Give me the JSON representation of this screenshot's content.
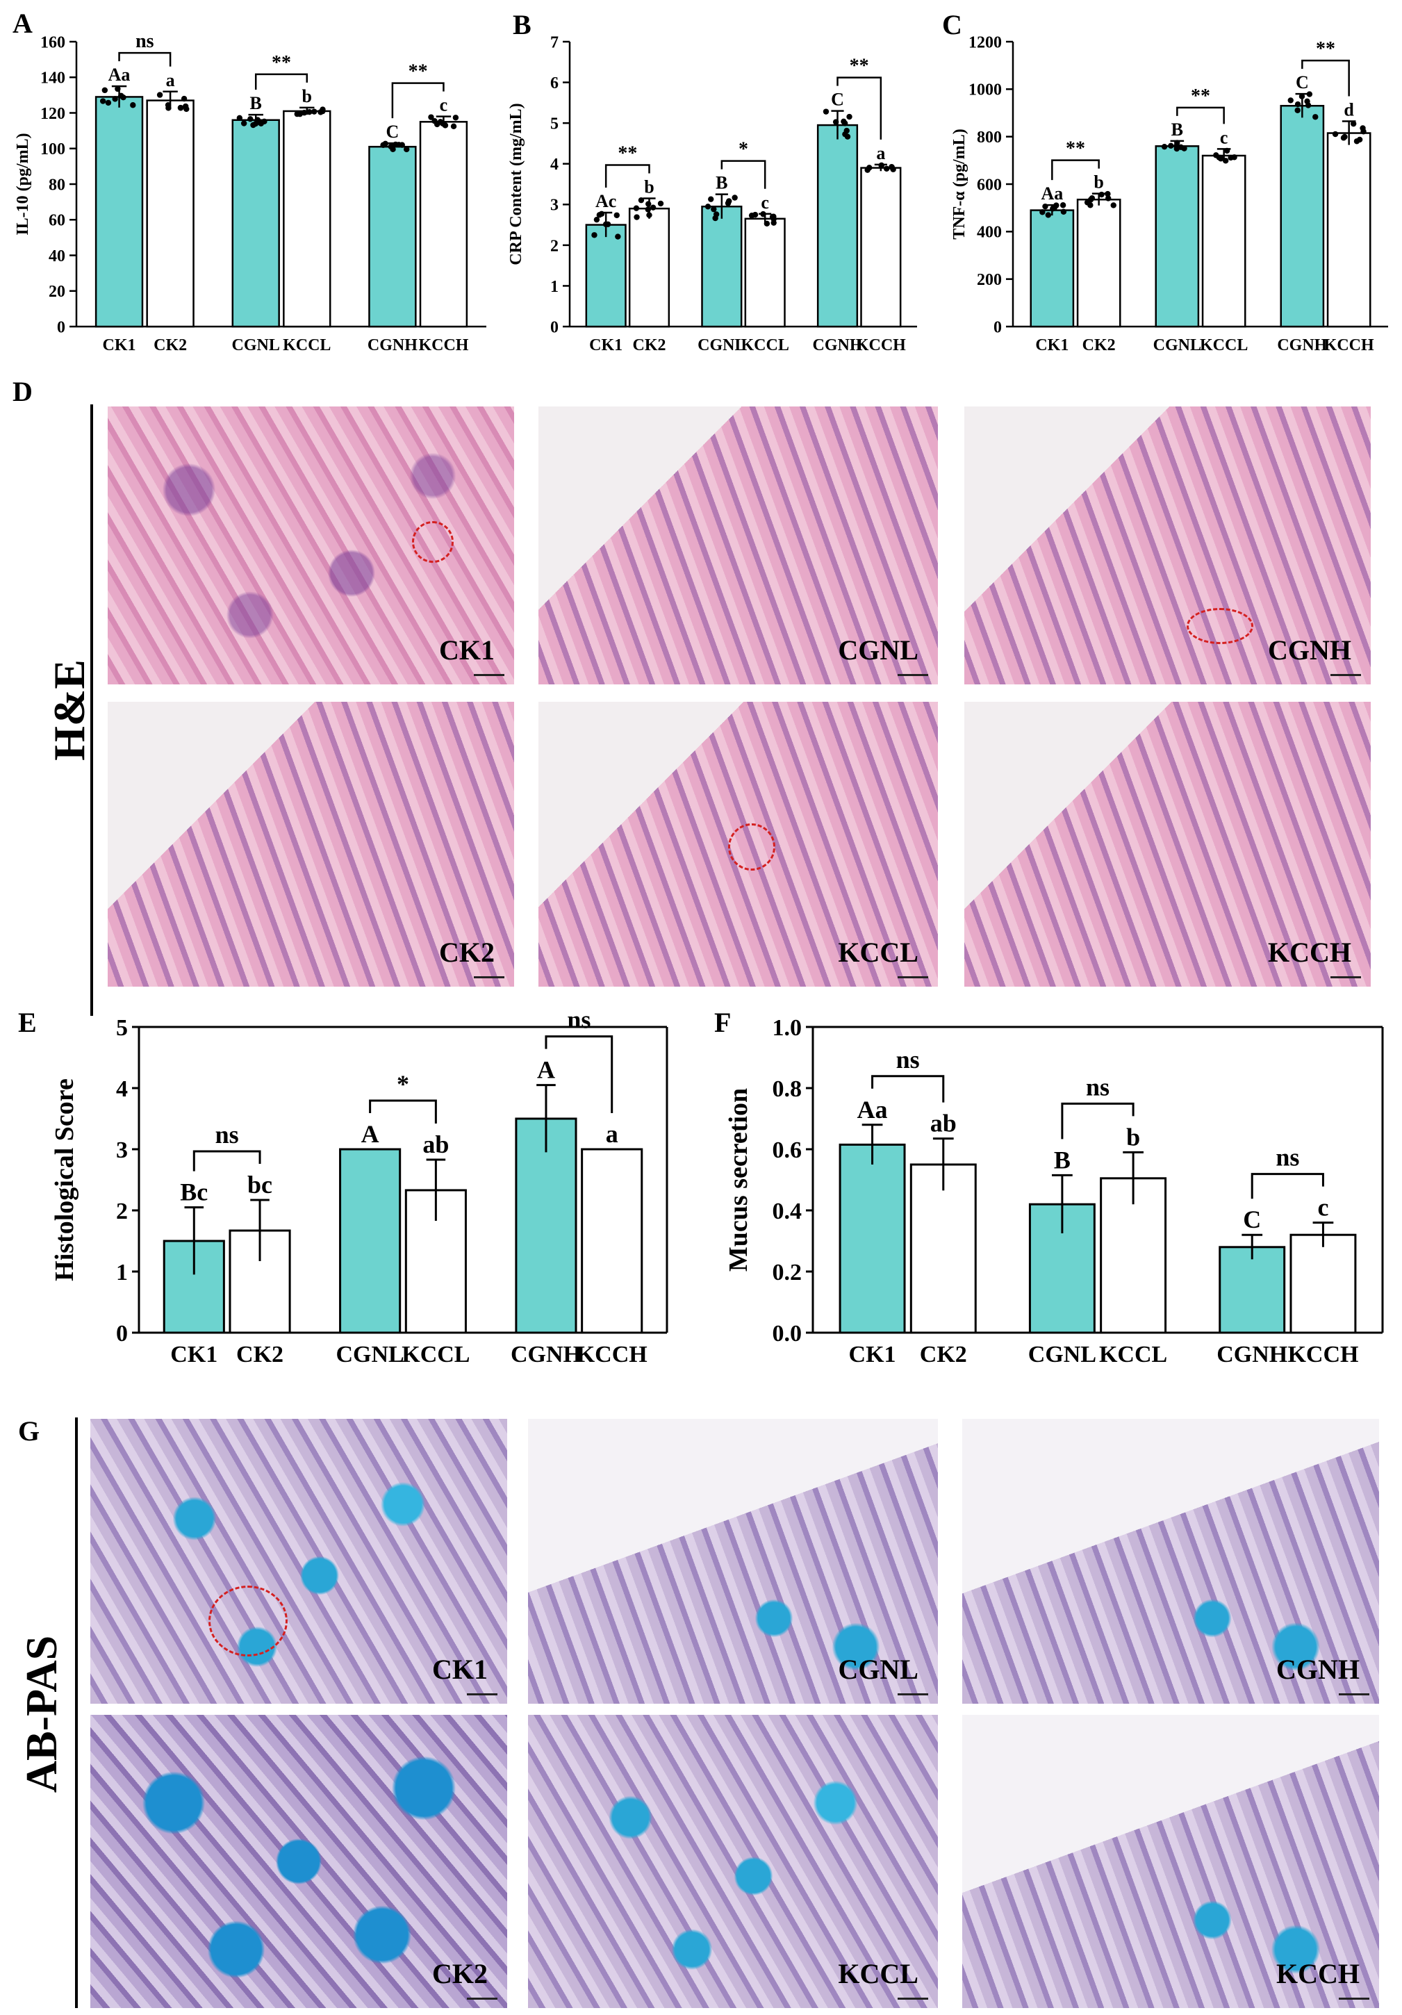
{
  "panel_labels": {
    "A": "A",
    "B": "B",
    "C": "C",
    "D": "D",
    "E": "E",
    "F": "F",
    "G": "G"
  },
  "side_labels": {
    "he": "H&E",
    "abpas": "AB-PAS"
  },
  "colors": {
    "teal": "#6dd3cf",
    "white": "#ffffff",
    "axis": "#000000",
    "circle": "#d42020"
  },
  "photos": {
    "he": [
      {
        "tag": "CK1",
        "stain": "he"
      },
      {
        "tag": "CGNL",
        "stain": "he-light"
      },
      {
        "tag": "CGNH",
        "stain": "he-light"
      },
      {
        "tag": "CK2",
        "stain": "he-light"
      },
      {
        "tag": "KCCL",
        "stain": "he-light"
      },
      {
        "tag": "KCCH",
        "stain": "he-light"
      }
    ],
    "abpas": [
      {
        "tag": "CK1",
        "stain": "ab"
      },
      {
        "tag": "CGNL",
        "stain": "ab-light"
      },
      {
        "tag": "CGNH",
        "stain": "ab-light"
      },
      {
        "tag": "CK2",
        "stain": "ab-dense"
      },
      {
        "tag": "KCCL",
        "stain": "ab"
      },
      {
        "tag": "KCCH",
        "stain": "ab-light"
      }
    ]
  },
  "chart_data": [
    {
      "id": "A",
      "type": "bar",
      "categories": [
        "CK1",
        "CK2",
        "CGNL",
        "KCCL",
        "CGNH",
        "KCCH"
      ],
      "values": [
        129,
        127,
        116,
        121,
        101,
        115
      ],
      "errors": [
        6,
        5,
        3,
        2,
        2,
        3
      ],
      "fills": [
        "teal",
        "white",
        "teal",
        "white",
        "teal",
        "white"
      ],
      "letters": [
        "Aa",
        "a",
        "B",
        "b",
        "C",
        "c"
      ],
      "ylabel": "IL-10 (pg/mL)",
      "ylim": [
        0,
        160
      ],
      "yticks": [
        0,
        20,
        40,
        60,
        80,
        100,
        120,
        140,
        160
      ],
      "comparisons": [
        {
          "pair": [
            0,
            1
          ],
          "label": "ns"
        },
        {
          "pair": [
            2,
            3
          ],
          "label": "**"
        },
        {
          "pair": [
            4,
            5
          ],
          "label": "**"
        }
      ],
      "dots": true
    },
    {
      "id": "B",
      "type": "bar",
      "categories": [
        "CK1",
        "CK2",
        "CGNL",
        "KCCL",
        "CGNH",
        "KCCH"
      ],
      "values": [
        2.5,
        2.9,
        2.95,
        2.65,
        4.95,
        3.9
      ],
      "errors": [
        0.3,
        0.25,
        0.3,
        0.12,
        0.35,
        0.08
      ],
      "fills": [
        "teal",
        "white",
        "teal",
        "white",
        "teal",
        "white"
      ],
      "letters": [
        "Ac",
        "b",
        "B",
        "c",
        "C",
        "a"
      ],
      "ylabel": "CRP Content (mg/mL)",
      "ylim": [
        0,
        7
      ],
      "yticks": [
        0,
        1,
        2,
        3,
        4,
        5,
        6,
        7
      ],
      "comparisons": [
        {
          "pair": [
            0,
            1
          ],
          "label": "**"
        },
        {
          "pair": [
            2,
            3
          ],
          "label": "*"
        },
        {
          "pair": [
            4,
            5
          ],
          "label": "**"
        }
      ],
      "dots": true
    },
    {
      "id": "C",
      "type": "bar",
      "categories": [
        "CK1",
        "CK2",
        "CGNL",
        "KCCL",
        "CGNH",
        "KCCH"
      ],
      "values": [
        490,
        535,
        760,
        720,
        930,
        815
      ],
      "errors": [
        22,
        25,
        22,
        28,
        50,
        50
      ],
      "fills": [
        "teal",
        "white",
        "teal",
        "white",
        "teal",
        "white"
      ],
      "letters": [
        "Aa",
        "b",
        "B",
        "c",
        "C",
        "d"
      ],
      "ylabel": "TNF-α (pg/mL)",
      "ylim": [
        0,
        1200
      ],
      "yticks": [
        0,
        200,
        400,
        600,
        800,
        1000,
        1200
      ],
      "comparisons": [
        {
          "pair": [
            0,
            1
          ],
          "label": "**"
        },
        {
          "pair": [
            2,
            3
          ],
          "label": "**"
        },
        {
          "pair": [
            4,
            5
          ],
          "label": "**"
        }
      ],
      "dots": true
    },
    {
      "id": "E",
      "type": "bar",
      "categories": [
        "CK1",
        "CK2",
        "CGNL",
        "KCCL",
        "CGNH",
        "KCCH"
      ],
      "values": [
        1.5,
        1.67,
        3.0,
        2.33,
        3.5,
        3.0
      ],
      "errors": [
        0.55,
        0.5,
        0,
        0.5,
        0.55,
        0
      ],
      "fills": [
        "teal",
        "white",
        "teal",
        "white",
        "teal",
        "white"
      ],
      "letters": [
        "Bc",
        "bc",
        "A",
        "ab",
        "A",
        "a"
      ],
      "ylabel": "Histological Score",
      "ylim": [
        0,
        5
      ],
      "yticks": [
        0,
        1,
        2,
        3,
        4,
        5
      ],
      "comparisons": [
        {
          "pair": [
            0,
            1
          ],
          "label": "ns"
        },
        {
          "pair": [
            2,
            3
          ],
          "label": "*"
        },
        {
          "pair": [
            4,
            5
          ],
          "label": "ns"
        }
      ],
      "dots": false
    },
    {
      "id": "F",
      "type": "bar",
      "categories": [
        "CK1",
        "CK2",
        "CGNL",
        "KCCL",
        "CGNH",
        "KCCH"
      ],
      "values": [
        0.615,
        0.55,
        0.42,
        0.505,
        0.28,
        0.32
      ],
      "errors": [
        0.065,
        0.085,
        0.095,
        0.085,
        0.04,
        0.04
      ],
      "fills": [
        "teal",
        "white",
        "teal",
        "white",
        "teal",
        "white"
      ],
      "letters": [
        "Aa",
        "ab",
        "B",
        "b",
        "C",
        "c"
      ],
      "ylabel": "Mucus secretion",
      "ylim": [
        0,
        1.0
      ],
      "yticks": [
        0.0,
        0.2,
        0.4,
        0.6,
        0.8,
        1.0
      ],
      "comparisons": [
        {
          "pair": [
            0,
            1
          ],
          "label": "ns"
        },
        {
          "pair": [
            2,
            3
          ],
          "label": "ns"
        },
        {
          "pair": [
            4,
            5
          ],
          "label": "ns"
        }
      ],
      "dots": false
    }
  ]
}
